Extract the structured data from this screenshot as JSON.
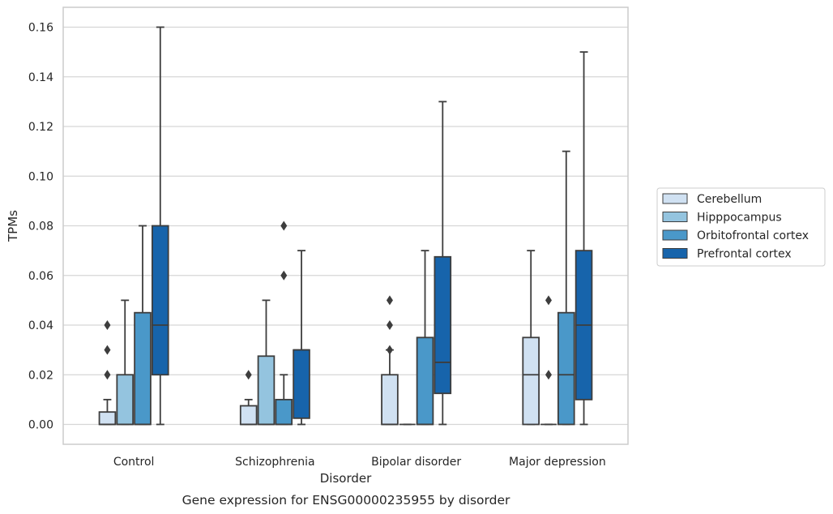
{
  "chart_data": {
    "type": "boxplot",
    "caption": "Gene expression for ENSG00000235955 by disorder",
    "xlabel": "Disorder",
    "ylabel": "TPMs",
    "ylim": [
      -0.008,
      0.168
    ],
    "yticks": [
      "0.00",
      "0.02",
      "0.04",
      "0.06",
      "0.08",
      "0.10",
      "0.12",
      "0.14",
      "0.16"
    ],
    "ytick_values": [
      0,
      0.02,
      0.04,
      0.06,
      0.08,
      0.1,
      0.12,
      0.14,
      0.16
    ],
    "grid": "horizontal",
    "legend_position": "right",
    "categories": [
      "Control",
      "Schizophrenia",
      "Bipolar disorder",
      "Major depression"
    ],
    "series": [
      {
        "name": "Cerebellum",
        "color": "#d0e1f2",
        "boxes": [
          {
            "q1": 0,
            "median": 0,
            "q3": 0.005,
            "whisker_low": 0,
            "whisker_high": 0.01,
            "outliers": [
              0.02,
              0.03,
              0.04
            ]
          },
          {
            "q1": 0,
            "median": 0,
            "q3": 0.0075,
            "whisker_low": 0,
            "whisker_high": 0.01,
            "outliers": [
              0.02
            ]
          },
          {
            "q1": 0,
            "median": 0,
            "q3": 0.02,
            "whisker_low": 0,
            "whisker_high": 0.03,
            "outliers": [
              0.03,
              0.04,
              0.05
            ]
          },
          {
            "q1": 0,
            "median": 0.02,
            "q3": 0.035,
            "whisker_low": 0,
            "whisker_high": 0.07,
            "outliers": []
          }
        ]
      },
      {
        "name": "Hipppocampus",
        "color": "#94c4df",
        "boxes": [
          {
            "q1": 0,
            "median": 0,
            "q3": 0.02,
            "whisker_low": 0,
            "whisker_high": 0.05,
            "outliers": []
          },
          {
            "q1": 0,
            "median": 0,
            "q3": 0.0275,
            "whisker_low": 0,
            "whisker_high": 0.05,
            "outliers": []
          },
          {
            "q1": 0,
            "median": 0,
            "q3": 0,
            "whisker_low": 0,
            "whisker_high": 0,
            "outliers": []
          },
          {
            "q1": 0,
            "median": 0,
            "q3": 0,
            "whisker_low": 0,
            "whisker_high": 0,
            "outliers": [
              0.02,
              0.05
            ]
          }
        ]
      },
      {
        "name": "Orbitofrontal cortex",
        "color": "#4a98c9",
        "boxes": [
          {
            "q1": 0,
            "median": 0,
            "q3": 0.045,
            "whisker_low": 0,
            "whisker_high": 0.08,
            "outliers": []
          },
          {
            "q1": 0,
            "median": 0,
            "q3": 0.01,
            "whisker_low": 0,
            "whisker_high": 0.02,
            "outliers": [
              0.06,
              0.08
            ]
          },
          {
            "q1": 0,
            "median": 0,
            "q3": 0.035,
            "whisker_low": 0,
            "whisker_high": 0.07,
            "outliers": []
          },
          {
            "q1": 0,
            "median": 0.02,
            "q3": 0.045,
            "whisker_low": 0,
            "whisker_high": 0.11,
            "outliers": []
          }
        ]
      },
      {
        "name": "Prefrontal cortex",
        "color": "#1764ab",
        "boxes": [
          {
            "q1": 0.02,
            "median": 0.04,
            "q3": 0.08,
            "whisker_low": 0,
            "whisker_high": 0.16,
            "outliers": []
          },
          {
            "q1": 0.0025,
            "median": 0.03,
            "q3": 0.03,
            "whisker_low": 0,
            "whisker_high": 0.07,
            "outliers": []
          },
          {
            "q1": 0.0125,
            "median": 0.025,
            "q3": 0.0675,
            "whisker_low": 0,
            "whisker_high": 0.13,
            "outliers": []
          },
          {
            "q1": 0.01,
            "median": 0.04,
            "q3": 0.07,
            "whisker_low": 0,
            "whisker_high": 0.15,
            "outliers": []
          }
        ]
      }
    ]
  }
}
